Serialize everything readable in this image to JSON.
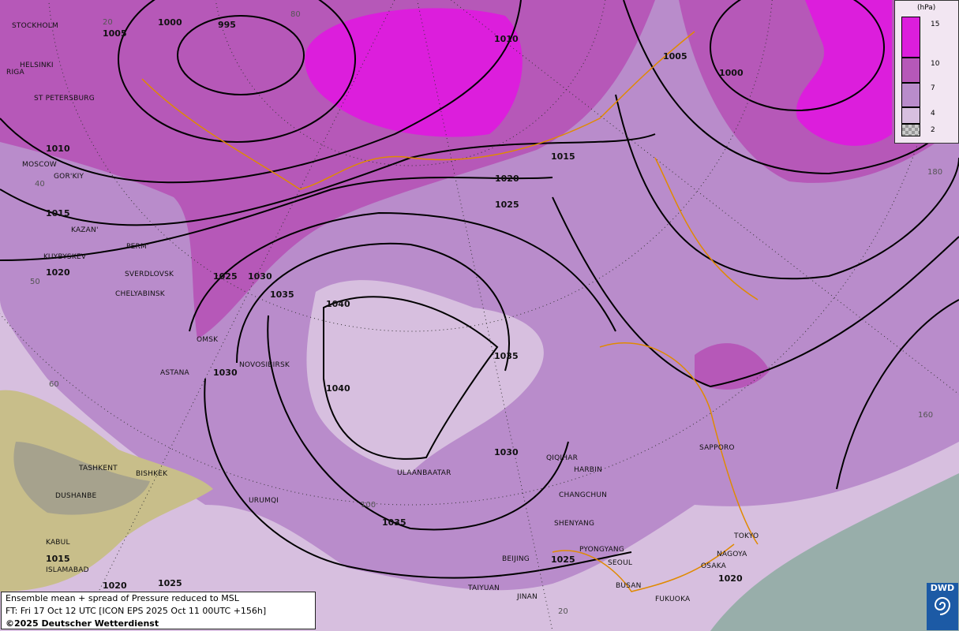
{
  "map": {
    "type": "weather-map",
    "shading_colors": {
      "lt4": "#d7bfdf",
      "4to7": "#b98ccb",
      "7to10": "#b658b8",
      "gt10": "#dc1edc",
      "sea_masked": "#98aeaa"
    },
    "cities": [
      "STOCKHOLM",
      "HELSINKI",
      "RIGA",
      "ST PETERSBURG",
      "MOSCOW",
      "GOR'KIY",
      "KAZAN'",
      "PERM'",
      "KUYBYSKEV",
      "SVERDLOVSK",
      "CHELYABINSK",
      "OMSK",
      "ASTANA",
      "NOVOSIBIRSK",
      "TASHKENT",
      "BISHKEK",
      "DUSHANBE",
      "URUMQI",
      "KABUL",
      "ISLAMABAD",
      "ULAANBAATAR",
      "QIQIHAR",
      "HARBIN",
      "CHANGCHUN",
      "SHENYANG",
      "PYONGYANG",
      "SEOUL",
      "BEIJING",
      "TAIYUAN",
      "JINAN",
      "BUSAN",
      "FUKUOKA",
      "OSAKA",
      "NAGOYA",
      "TOKYO",
      "SAPPORO"
    ],
    "isobar_labels": [
      "1005",
      "1000",
      "995",
      "1010",
      "1005",
      "1000",
      "1015",
      "1020",
      "1025",
      "1010",
      "1015",
      "1020",
      "1025",
      "1030",
      "1035",
      "1040",
      "1040",
      "1035",
      "1030",
      "1030",
      "1035",
      "1025",
      "1020",
      "1015",
      "1020",
      "1025"
    ],
    "grid_labels": [
      "20",
      "80",
      "40",
      "50",
      "60",
      "100",
      "180",
      "160",
      "20"
    ]
  },
  "legend": {
    "unit": "(hPa)",
    "ticks": [
      "15",
      "10",
      "7",
      "4",
      "2"
    ]
  },
  "info": {
    "line1": "Ensemble mean + spread of Pressure reduced to MSL",
    "line2": "FT: Fri 17 Oct 12 UTC [ICON EPS 2025 Oct 11 00UTC +156h]",
    "copyright": "©2025 Deutscher Wetterdienst"
  },
  "logo": {
    "text": "DWD"
  }
}
